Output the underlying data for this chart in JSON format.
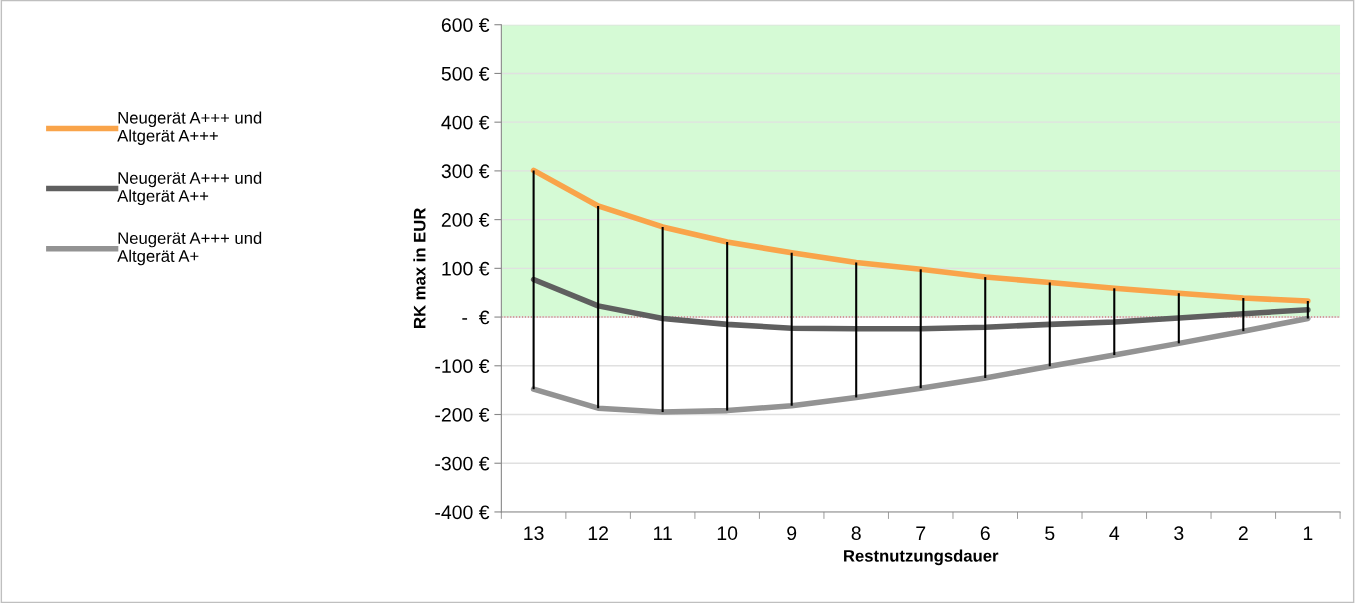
{
  "chart_data": {
    "type": "line",
    "xlabel": "Restnutzungsdauer",
    "ylabel": "RK max in EUR",
    "categories": [
      "13",
      "12",
      "11",
      "10",
      "9",
      "8",
      "7",
      "6",
      "5",
      "4",
      "3",
      "2",
      "1"
    ],
    "series": [
      {
        "name": "Neugerät A+++ und\nAltgerät A+++",
        "color": "#f9a44a",
        "values": [
          301,
          228,
          185,
          154,
          132,
          112,
          98,
          82,
          71,
          59,
          49,
          39,
          33
        ],
        "errors": [
          [
            -148,
            301
          ],
          [
            -187,
            228
          ],
          [
            -195,
            185
          ],
          [
            -192,
            154
          ],
          [
            -182,
            132
          ],
          [
            -165,
            112
          ],
          [
            -146,
            98
          ],
          [
            -125,
            82
          ],
          [
            -101,
            71
          ],
          [
            -78,
            59
          ],
          [
            -54,
            49
          ],
          [
            -29,
            39
          ],
          [
            -3,
            33
          ]
        ]
      },
      {
        "name": "Neugerät A+++ und\nAltgerät A++",
        "color": "#5f5f5f",
        "values": [
          77,
          23,
          -3,
          -15,
          -23,
          -24,
          -24,
          -21,
          -15,
          -10,
          -2,
          7,
          15
        ]
      },
      {
        "name": "Neugerät A+++ und\nAltgerät A+",
        "color": "#939393",
        "values": [
          -148,
          -187,
          -195,
          -192,
          -182,
          -165,
          -146,
          -125,
          -101,
          -78,
          -54,
          -29,
          -3
        ]
      }
    ],
    "ylim": [
      -400,
      600
    ],
    "yticks": [
      {
        "value": -400,
        "label": "-400 €"
      },
      {
        "value": -300,
        "label": "-300 €"
      },
      {
        "value": -200,
        "label": "-200 €"
      },
      {
        "value": -100,
        "label": "-100 €"
      },
      {
        "value": 0,
        "label": "-  €"
      },
      {
        "value": 100,
        "label": "100 €"
      },
      {
        "value": 200,
        "label": "200 €"
      },
      {
        "value": 300,
        "label": "300 €"
      },
      {
        "value": 400,
        "label": "400 €"
      },
      {
        "value": 500,
        "label": "500 €"
      },
      {
        "value": 600,
        "label": "600 €"
      }
    ],
    "grid": "y",
    "legend": "left",
    "marker": "none",
    "line_style": "solid",
    "bands": [
      {
        "axis": "y",
        "from": 0,
        "to": 600,
        "color": "#d5fad5"
      }
    ],
    "ref_lines": [
      {
        "axis": "y",
        "value": 0,
        "color": "#c0504d",
        "line_style": "dotted"
      }
    ]
  }
}
